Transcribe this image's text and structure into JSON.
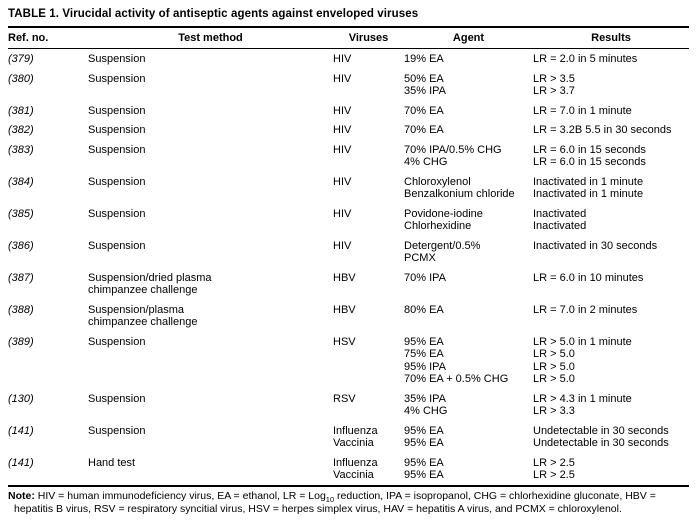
{
  "table": {
    "title": "TABLE 1. Virucidal activity of antiseptic agents against enveloped viruses",
    "columns": {
      "ref_no": "Ref. no.",
      "test_method": "Test method",
      "viruses": "Viruses",
      "agent": "Agent",
      "results": "Results"
    },
    "rows": [
      {
        "ref": "(379)",
        "method": [
          "Suspension"
        ],
        "viruses": [
          "HIV"
        ],
        "agents": [
          "19% EA"
        ],
        "results": [
          "LR = 2.0 in 5 minutes"
        ]
      },
      {
        "ref": "(380)",
        "method": [
          "Suspension"
        ],
        "viruses": [
          "HIV"
        ],
        "agents": [
          "50% EA",
          "35% IPA"
        ],
        "results": [
          "LR > 3.5",
          "LR > 3.7"
        ]
      },
      {
        "ref": "(381)",
        "method": [
          "Suspension"
        ],
        "viruses": [
          "HIV"
        ],
        "agents": [
          "70% EA"
        ],
        "results": [
          "LR = 7.0 in 1 minute"
        ]
      },
      {
        "ref": "(382)",
        "method": [
          "Suspension"
        ],
        "viruses": [
          "HIV"
        ],
        "agents": [
          "70% EA"
        ],
        "results": [
          "LR = 3.2B 5.5 in 30 seconds"
        ]
      },
      {
        "ref": "(383)",
        "method": [
          "Suspension"
        ],
        "viruses": [
          "HIV"
        ],
        "agents": [
          "70% IPA/0.5% CHG",
          "4% CHG"
        ],
        "results": [
          "LR = 6.0 in 15 seconds",
          "LR = 6.0 in 15 seconds"
        ]
      },
      {
        "ref": "(384)",
        "method": [
          "Suspension"
        ],
        "viruses": [
          "HIV"
        ],
        "agents": [
          "Chloroxylenol",
          "Benzalkonium chloride"
        ],
        "results": [
          "Inactivated in 1 minute",
          "Inactivated in 1 minute"
        ]
      },
      {
        "ref": "(385)",
        "method": [
          "Suspension"
        ],
        "viruses": [
          "HIV"
        ],
        "agents": [
          "Povidone-iodine",
          "Chlorhexidine"
        ],
        "results": [
          "Inactivated",
          "Inactivated"
        ]
      },
      {
        "ref": "(386)",
        "method": [
          "Suspension"
        ],
        "viruses": [
          "HIV"
        ],
        "agents": [
          "Detergent/0.5%",
          "PCMX"
        ],
        "results": [
          "Inactivated in 30 seconds"
        ]
      },
      {
        "ref": "(387)",
        "method": [
          "Suspension/dried plasma",
          "chimpanzee challenge"
        ],
        "viruses": [
          "HBV"
        ],
        "agents": [
          "70% IPA"
        ],
        "results": [
          "LR = 6.0 in 10 minutes"
        ]
      },
      {
        "ref": "(388)",
        "method": [
          "Suspension/plasma",
          "chimpanzee challenge"
        ],
        "viruses": [
          "HBV"
        ],
        "agents": [
          "80% EA"
        ],
        "results": [
          "LR = 7.0 in 2 minutes"
        ]
      },
      {
        "ref": "(389)",
        "method": [
          "Suspension"
        ],
        "viruses": [
          "HSV"
        ],
        "agents": [
          "95% EA",
          "75% EA",
          "95% IPA",
          "70% EA + 0.5% CHG"
        ],
        "results": [
          "LR > 5.0 in 1 minute",
          "LR > 5.0",
          "LR > 5.0",
          "LR > 5.0"
        ]
      },
      {
        "ref": "(130)",
        "method": [
          "Suspension"
        ],
        "viruses": [
          "RSV"
        ],
        "agents": [
          "35% IPA",
          "4% CHG"
        ],
        "results": [
          "LR > 4.3 in 1 minute",
          "LR > 3.3"
        ]
      },
      {
        "ref": "(141)",
        "method": [
          "Suspension"
        ],
        "viruses": [
          "Influenza",
          "Vaccinia"
        ],
        "agents": [
          "95% EA",
          "95% EA"
        ],
        "results": [
          "Undetectable in 30 seconds",
          "Undetectable in 30 seconds"
        ]
      },
      {
        "ref": "(141)",
        "method": [
          "Hand test"
        ],
        "viruses": [
          "Influenza",
          "Vaccinia"
        ],
        "agents": [
          "95% EA",
          "95% EA"
        ],
        "results": [
          "LR > 2.5",
          "LR > 2.5"
        ]
      }
    ],
    "note": {
      "label": "Note:",
      "before_sub": " HIV = human immunodeficiency virus, EA = ethanol, LR = Log",
      "sub": "10",
      "after_sub": " reduction, IPA = isopropanol, CHG = chlorhexidine gluconate, HBV = hepatitis B virus, RSV = respiratory syncitial virus, HSV = herpes simplex virus, HAV = hepatitis A virus, and PCMX = chloroxylenol."
    },
    "colors": {
      "text": "#000000",
      "background": "#ffffff",
      "rule": "#000000"
    }
  }
}
